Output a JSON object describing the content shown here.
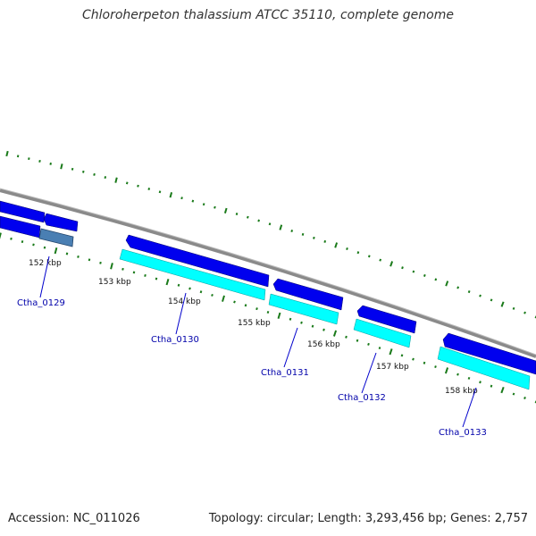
{
  "title": "Chloroherpeton thalassium ATCC 35110, complete genome",
  "footer": {
    "accession": "Accession: NC_011026",
    "summary": "Topology: circular; Length: 3,293,456 bp; Genes: 2,757"
  },
  "colors": {
    "forward_gene": "#0000ee",
    "reverse_gene": "#00ffff",
    "selected_gene": "#4a7fb3",
    "backbone": "#888888",
    "tick": "#1a7a1a",
    "label_link": "#0000aa"
  },
  "kbp_labels": [
    "152 kbp",
    "153 kbp",
    "154 kbp",
    "155 kbp",
    "156 kbp",
    "157 kbp",
    "158 kbp"
  ],
  "gene_labels": [
    "Ctha_0129",
    "Ctha_0130",
    "Ctha_0131",
    "Ctha_0132",
    "Ctha_0133"
  ]
}
